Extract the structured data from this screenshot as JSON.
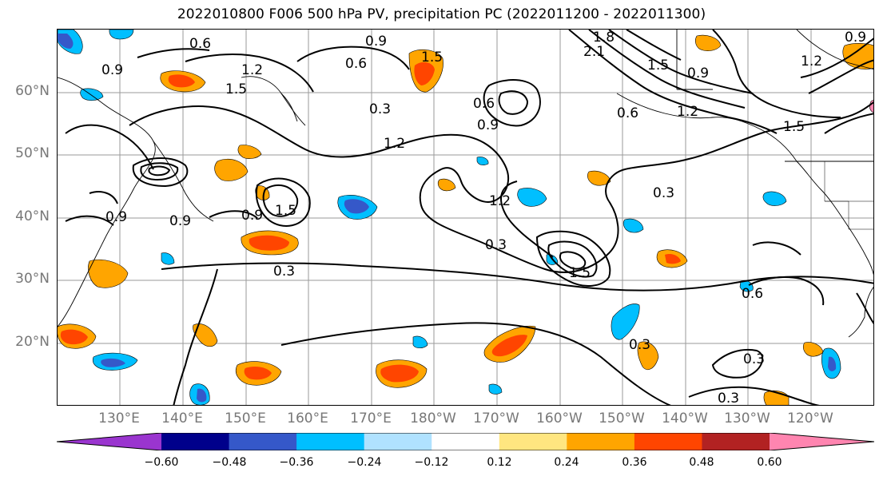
{
  "title": "2022010800 F006 500 hPa PV, precipitation PC (2022011200 - 2022011300)",
  "latitude_labels": [
    "60°N",
    "50°N",
    "40°N",
    "30°N",
    "20°N"
  ],
  "longitude_labels": [
    "130°E",
    "140°E",
    "150°E",
    "160°E",
    "170°E",
    "180°W",
    "170°W",
    "160°W",
    "150°W",
    "140°W",
    "130°W",
    "120°W"
  ],
  "pv_contour_labels": [
    "0.6",
    "0.9",
    "1.2",
    "1.5",
    "1.8",
    "2.1",
    "0.3"
  ],
  "colorbar": {
    "ticks": [
      "−0.60",
      "−0.48",
      "−0.36",
      "−0.24",
      "−0.12",
      "0.12",
      "0.24",
      "0.36",
      "0.48",
      "0.60"
    ],
    "colors": [
      "#9a35cf",
      "#00008b",
      "#3558c9",
      "#00bfff",
      "#b0e2ff",
      "#ffffff",
      "#ffe680",
      "#ffa500",
      "#ff4500",
      "#b22222",
      "#ff85b0"
    ]
  }
}
